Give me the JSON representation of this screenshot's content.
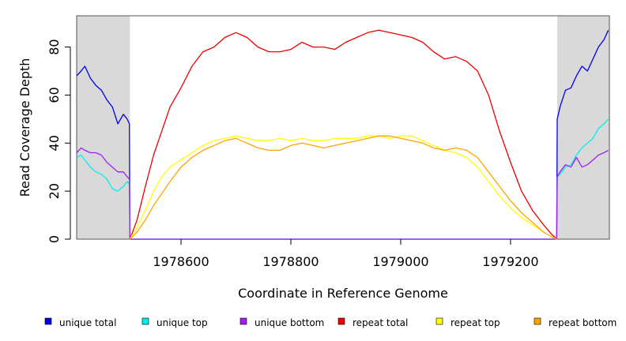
{
  "chart_data": {
    "type": "line",
    "xlabel": "Coordinate in Reference Genome",
    "ylabel": "Read Coverage Depth",
    "xlim": [
      1978410,
      1979380
    ],
    "ylim": [
      0,
      93
    ],
    "x_ticks": [
      1978600,
      1978800,
      1979000,
      1979200
    ],
    "x_tick_labels": [
      "1978600",
      "1978800",
      "1979000",
      "1979200"
    ],
    "y_ticks": [
      0,
      20,
      40,
      60,
      80
    ],
    "y_tick_labels": [
      "0",
      "20",
      "40",
      "60",
      "80"
    ],
    "shaded_regions": [
      [
        1978410,
        1978507
      ],
      [
        1979285,
        1979380
      ]
    ],
    "shade_color": "#d9d9d9",
    "legend_position": "bottom",
    "series": [
      {
        "name": "unique total",
        "color": "#0000ee",
        "x": [
          1978410,
          1978418,
          1978425,
          1978435,
          1978445,
          1978455,
          1978465,
          1978475,
          1978485,
          1978495,
          1978502,
          1978506,
          1978507,
          1979284,
          1979285,
          1979290,
          1979300,
          1979310,
          1979320,
          1979330,
          1979340,
          1979350,
          1979360,
          1979370,
          1979378
        ],
        "y": [
          68,
          70,
          72,
          67,
          64,
          62,
          58,
          55,
          48,
          52,
          50,
          48,
          0,
          0,
          50,
          55,
          62,
          63,
          68,
          72,
          70,
          75,
          80,
          83,
          87
        ]
      },
      {
        "name": "unique top",
        "color": "#00eeee",
        "x": [
          1978410,
          1978418,
          1978425,
          1978435,
          1978445,
          1978455,
          1978465,
          1978475,
          1978485,
          1978495,
          1978502,
          1978506,
          1978507,
          1979284,
          1979285,
          1979290,
          1979300,
          1979310,
          1979320,
          1979330,
          1979340,
          1979350,
          1979360,
          1979370,
          1979378
        ],
        "y": [
          34,
          35,
          33,
          30,
          28,
          27,
          25,
          21,
          20,
          22,
          24,
          23,
          0,
          0,
          26,
          27,
          30,
          31,
          35,
          38,
          40,
          42,
          46,
          48,
          50
        ]
      },
      {
        "name": "unique bottom",
        "color": "#a020f0",
        "x": [
          1978410,
          1978418,
          1978425,
          1978435,
          1978445,
          1978455,
          1978465,
          1978475,
          1978485,
          1978495,
          1978502,
          1978506,
          1978507,
          1979284,
          1979285,
          1979290,
          1979300,
          1979310,
          1979320,
          1979330,
          1979340,
          1979350,
          1979360,
          1979370,
          1979378
        ],
        "y": [
          36,
          38,
          37,
          36,
          36,
          35,
          32,
          30,
          28,
          28,
          26,
          25,
          0,
          0,
          26,
          28,
          31,
          30,
          34,
          30,
          31,
          33,
          35,
          36,
          37
        ]
      },
      {
        "name": "repeat total",
        "color": "#ee0000",
        "x": [
          1978507,
          1978520,
          1978535,
          1978550,
          1978565,
          1978580,
          1978600,
          1978620,
          1978640,
          1978660,
          1978680,
          1978700,
          1978720,
          1978740,
          1978760,
          1978780,
          1978800,
          1978820,
          1978840,
          1978860,
          1978880,
          1978900,
          1978920,
          1978940,
          1978960,
          1978980,
          1979000,
          1979020,
          1979040,
          1979060,
          1979080,
          1979100,
          1979120,
          1979140,
          1979160,
          1979180,
          1979200,
          1979220,
          1979240,
          1979260,
          1979275,
          1979284
        ],
        "y": [
          0,
          8,
          22,
          35,
          45,
          55,
          63,
          72,
          78,
          80,
          84,
          86,
          84,
          80,
          78,
          78,
          79,
          82,
          80,
          80,
          79,
          82,
          84,
          86,
          87,
          86,
          85,
          84,
          82,
          78,
          75,
          76,
          74,
          70,
          60,
          45,
          32,
          20,
          12,
          6,
          2,
          0
        ]
      },
      {
        "name": "repeat top",
        "color": "#ffff00",
        "x": [
          1978507,
          1978520,
          1978535,
          1978550,
          1978565,
          1978580,
          1978600,
          1978620,
          1978640,
          1978660,
          1978680,
          1978700,
          1978720,
          1978740,
          1978760,
          1978780,
          1978800,
          1978820,
          1978840,
          1978860,
          1978880,
          1978900,
          1978920,
          1978940,
          1978960,
          1978980,
          1979000,
          1979020,
          1979040,
          1979060,
          1979080,
          1979100,
          1979120,
          1979140,
          1979160,
          1979180,
          1979200,
          1979220,
          1979240,
          1979260,
          1979275,
          1979284
        ],
        "y": [
          0,
          5,
          12,
          20,
          26,
          30,
          33,
          36,
          39,
          41,
          42,
          43,
          42,
          41,
          41,
          42,
          41,
          42,
          41,
          41,
          42,
          42,
          42,
          43,
          43,
          42,
          43,
          43,
          41,
          39,
          37,
          36,
          34,
          30,
          24,
          18,
          13,
          9,
          6,
          3,
          1,
          0
        ]
      },
      {
        "name": "repeat bottom",
        "color": "#ffa500",
        "x": [
          1978507,
          1978520,
          1978535,
          1978550,
          1978565,
          1978580,
          1978600,
          1978620,
          1978640,
          1978660,
          1978680,
          1978700,
          1978720,
          1978740,
          1978760,
          1978780,
          1978800,
          1978820,
          1978840,
          1978860,
          1978880,
          1978900,
          1978920,
          1978940,
          1978960,
          1978980,
          1979000,
          1979020,
          1979040,
          1979060,
          1979080,
          1979100,
          1979120,
          1979140,
          1979160,
          1979180,
          1979200,
          1979220,
          1979240,
          1979260,
          1979275,
          1979284
        ],
        "y": [
          0,
          3,
          8,
          14,
          19,
          24,
          30,
          34,
          37,
          39,
          41,
          42,
          40,
          38,
          37,
          37,
          39,
          40,
          39,
          38,
          39,
          40,
          41,
          42,
          43,
          43,
          42,
          41,
          40,
          38,
          37,
          38,
          37,
          34,
          28,
          22,
          16,
          11,
          7,
          3,
          1,
          0
        ]
      }
    ]
  }
}
